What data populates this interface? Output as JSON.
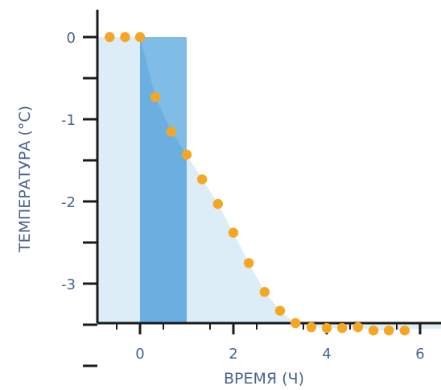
{
  "chart_data": {
    "type": "scatter",
    "title": "",
    "xlabel": "ВРЕМЯ (Ч)",
    "ylabel": "ТЕМПЕРАТУРА (°C)",
    "xlim": [
      -0.9,
      6.45
    ],
    "ylim": [
      -4.45,
      0.65
    ],
    "x_ticks": [
      0,
      2,
      4,
      6
    ],
    "x_tick_labels": [
      "0",
      "2",
      "4",
      "6"
    ],
    "y_ticks": [
      0,
      -0.5,
      -1,
      -1.5,
      -2,
      -2.5,
      -3,
      -3.5,
      -4
    ],
    "y_tick_labels": [
      "0",
      "",
      "-1",
      "",
      "-2",
      "",
      "-3",
      "",
      ""
    ],
    "grid": false,
    "legend": "none",
    "colors": {
      "points": "#f5a623",
      "background_region": "#dcedf8",
      "highlight_band": "#6aafe0",
      "highlight_band_light": "#7fbce6",
      "axis": "#1a1a1a",
      "text": "#4a6390"
    },
    "regions": {
      "background_fill": {
        "x_start": -0.9,
        "x_end": 6.45,
        "top_start_y": 0,
        "top_end_y": -3.55
      },
      "highlight_band": {
        "x_start": 0,
        "x_end": 1
      }
    },
    "series": [
      {
        "x": [
          -0.65,
          -0.32,
          0.0,
          0.33,
          0.67,
          1.0,
          1.33,
          1.67,
          2.0,
          2.33,
          2.67,
          3.0,
          3.33,
          3.67,
          4.0,
          4.33,
          4.67,
          5.0,
          5.33,
          5.67
        ],
        "y": [
          0.0,
          0.0,
          0.0,
          -0.73,
          -1.15,
          -1.43,
          -1.73,
          -2.03,
          -2.38,
          -2.75,
          -3.1,
          -3.33,
          -3.48,
          -3.53,
          -3.54,
          -3.54,
          -3.53,
          -3.57,
          -3.57,
          -3.57
        ]
      }
    ]
  }
}
